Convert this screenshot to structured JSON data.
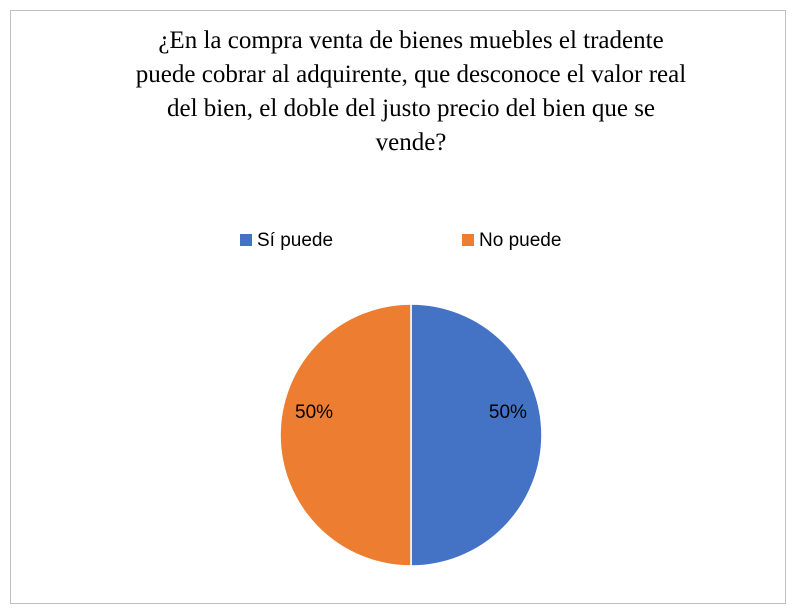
{
  "chart_data": {
    "type": "pie",
    "title": "¿En la compra venta de bienes muebles el tradente puede cobrar al adquirente, que desconoce el valor real del bien, el doble del justo precio del bien que se vende?",
    "categories": [
      "Sí puede",
      "No puede"
    ],
    "values": [
      50,
      50
    ],
    "value_labels": [
      "50%",
      "50%"
    ],
    "colors": [
      "#4472c4",
      "#ed7d31"
    ],
    "legend": "top"
  }
}
